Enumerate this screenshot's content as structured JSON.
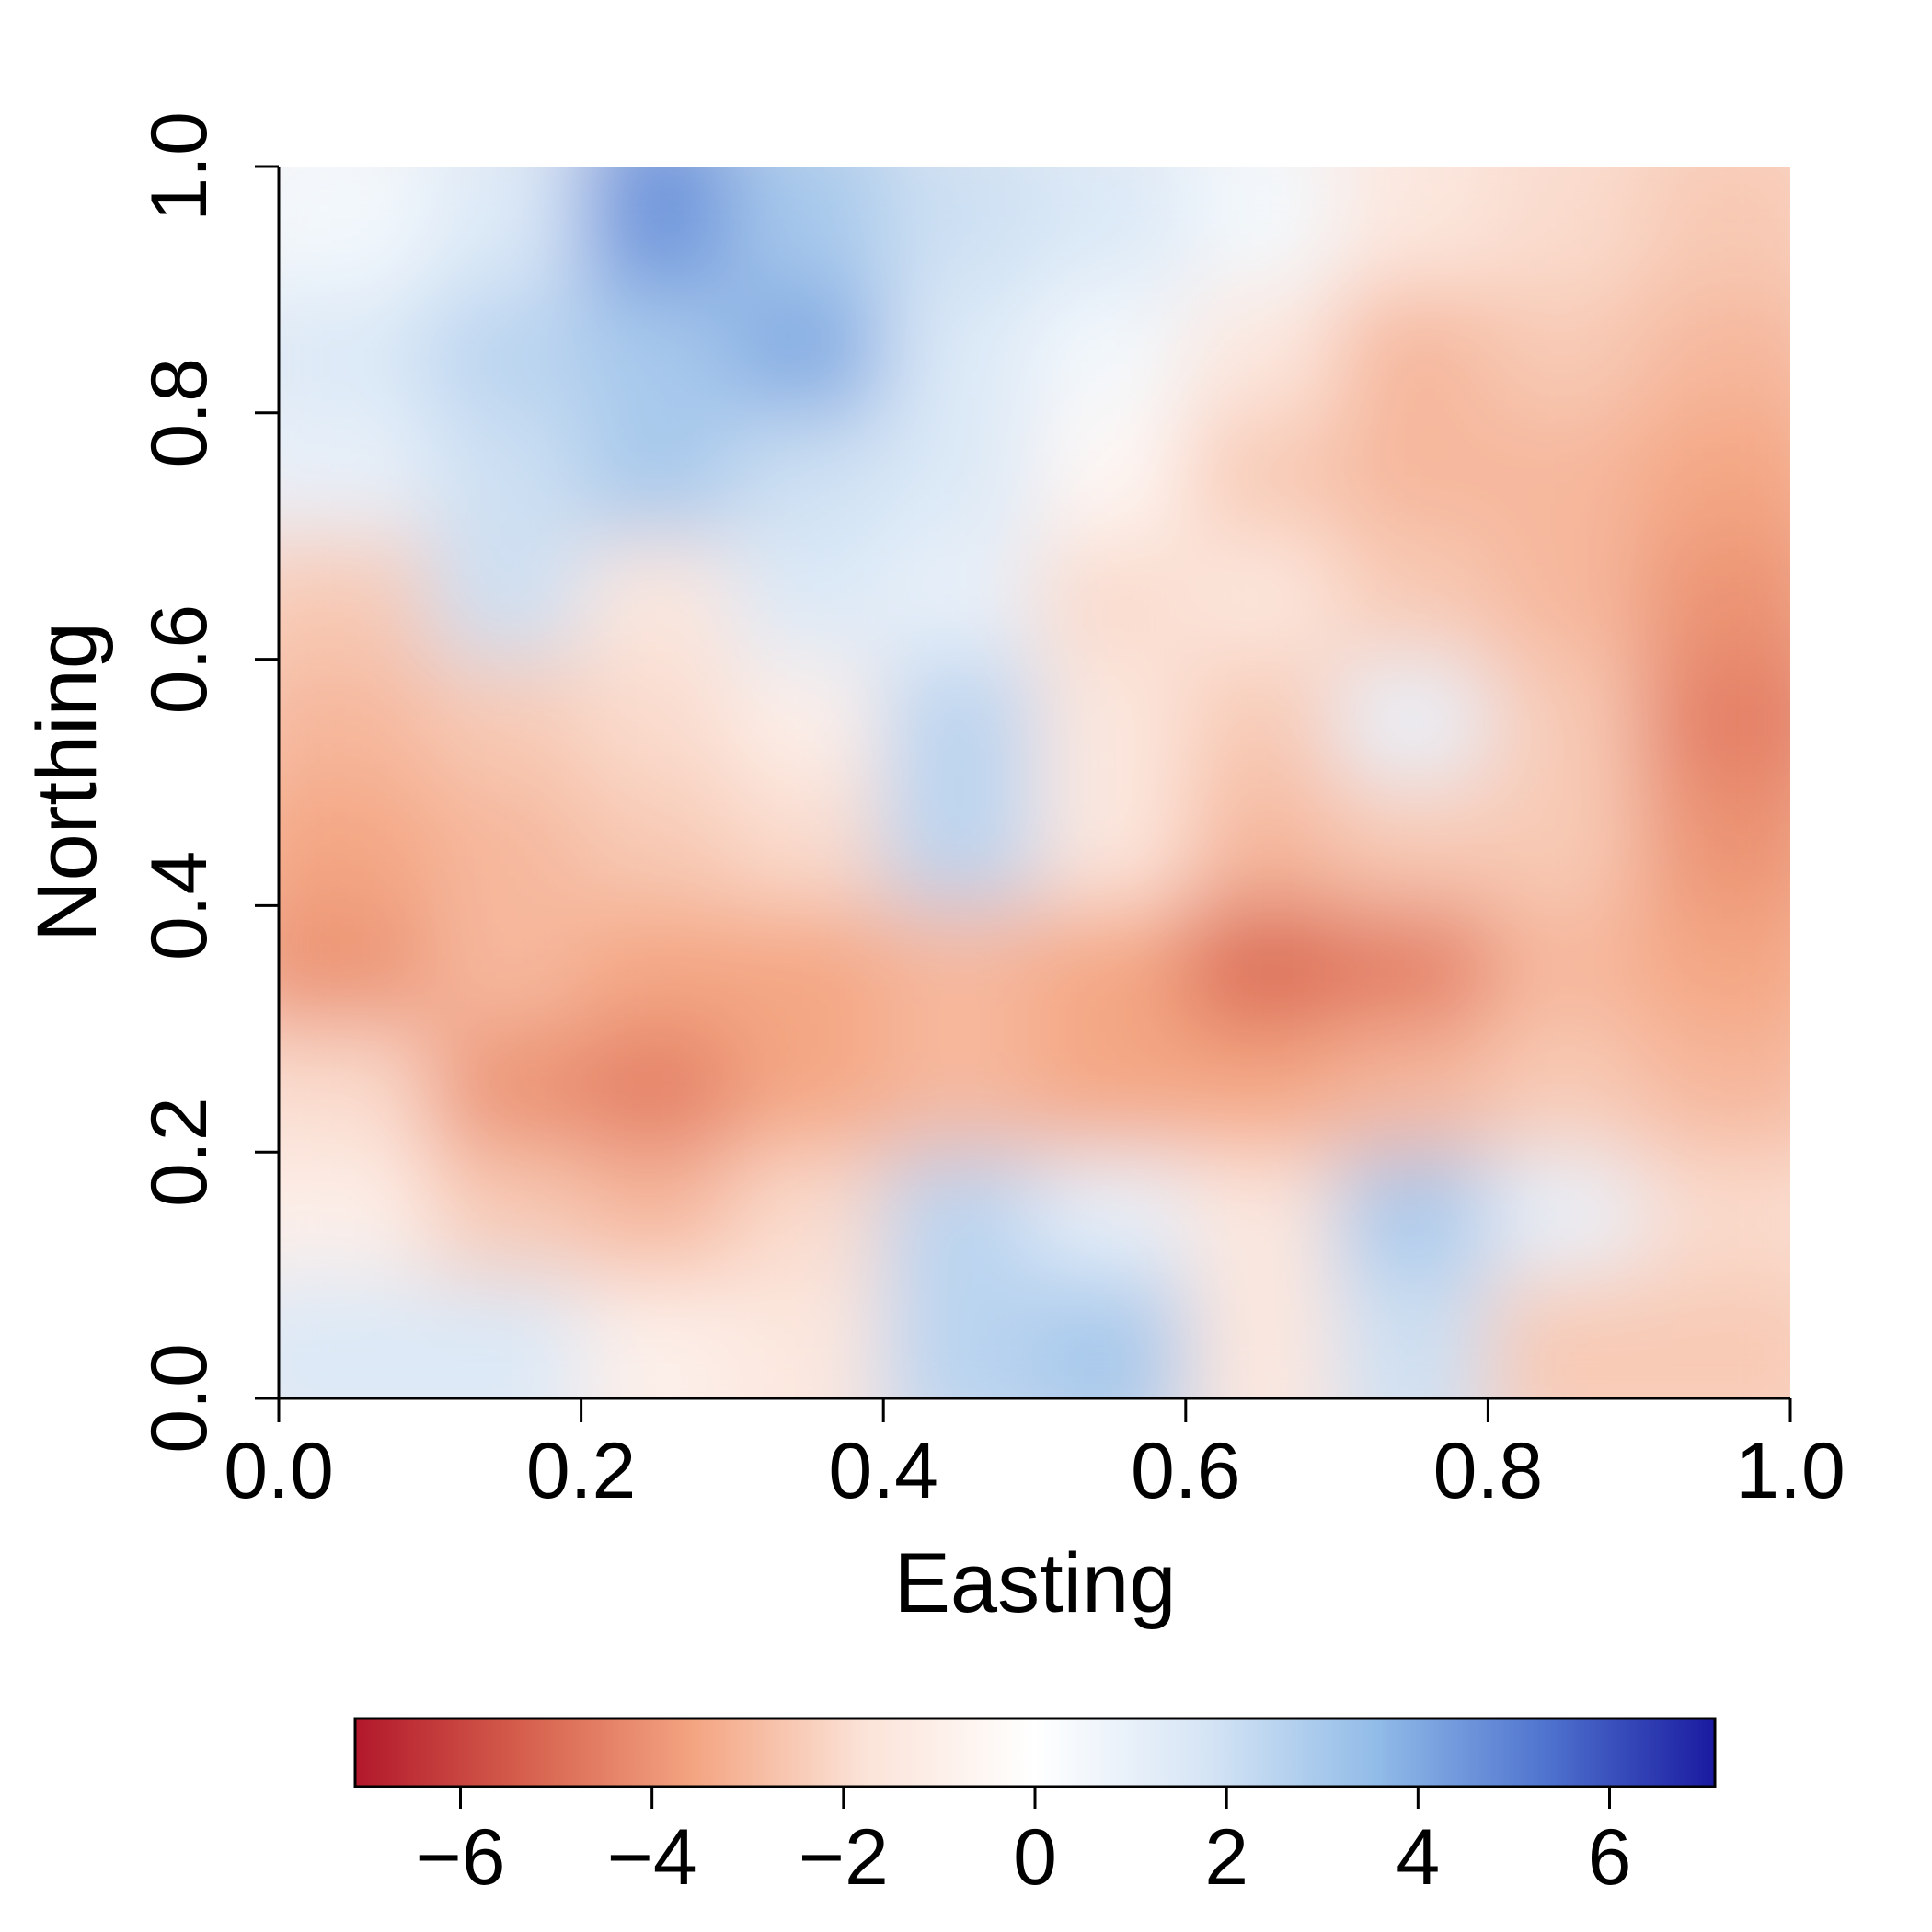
{
  "chart_data": {
    "type": "heatmap",
    "title": "",
    "xlabel": "Easting",
    "ylabel": "Northing",
    "xlim": [
      0.0,
      1.0
    ],
    "ylim": [
      0.0,
      1.0
    ],
    "x_ticks": [
      "0.0",
      "0.2",
      "0.4",
      "0.6",
      "0.8",
      "1.0"
    ],
    "x_tick_values": [
      0.0,
      0.2,
      0.4,
      0.6,
      0.8,
      1.0
    ],
    "y_ticks": [
      "0.0",
      "0.2",
      "0.4",
      "0.6",
      "0.8",
      "1.0"
    ],
    "y_tick_values": [
      0.0,
      0.2,
      0.4,
      0.6,
      0.8,
      1.0
    ],
    "colorbar": {
      "range": [
        -7.1,
        7.1
      ],
      "ticks": [
        "−6",
        "−4",
        "−2",
        "0",
        "2",
        "4",
        "6"
      ],
      "tick_values": [
        -6,
        -4,
        -2,
        0,
        2,
        4,
        6
      ],
      "colors": [
        "#b2182b",
        "#d6604d",
        "#f4a582",
        "#fbe3d8",
        "#ffffff",
        "#d6e5f5",
        "#92bce8",
        "#4f74cf",
        "#1a1aa0"
      ],
      "placement": "bottom"
    },
    "grid": false,
    "x": [
      0.05,
      0.15,
      0.25,
      0.35,
      0.45,
      0.55,
      0.65,
      0.75,
      0.85,
      0.95
    ],
    "y": [
      0.95,
      0.85,
      0.75,
      0.65,
      0.55,
      0.45,
      0.35,
      0.25,
      0.15,
      0.05
    ],
    "z": [
      [
        0.5,
        1.5,
        4.5,
        3.0,
        2.0,
        1.5,
        0.5,
        -1.5,
        -2.0,
        -2.5
      ],
      [
        1.5,
        2.5,
        3.0,
        4.0,
        1.5,
        0.5,
        -1.5,
        -3.0,
        -2.5,
        -3.0
      ],
      [
        1.0,
        2.0,
        3.0,
        2.0,
        1.5,
        -0.5,
        -2.5,
        -3.0,
        -3.0,
        -3.5
      ],
      [
        -2.5,
        2.0,
        -1.5,
        1.5,
        1.0,
        -2.0,
        -1.5,
        -2.5,
        -3.0,
        -4.0
      ],
      [
        -3.0,
        -2.5,
        -2.0,
        -1.0,
        2.5,
        -1.5,
        -2.5,
        1.0,
        -2.5,
        -4.5
      ],
      [
        -3.5,
        -3.0,
        -2.5,
        -2.0,
        2.5,
        -1.5,
        -3.0,
        -2.5,
        -2.5,
        -4.0
      ],
      [
        -4.0,
        -3.0,
        -3.5,
        -3.5,
        -3.0,
        -3.5,
        -5.0,
        -4.5,
        -3.0,
        -3.5
      ],
      [
        -2.0,
        -4.0,
        -4.5,
        -3.5,
        -3.0,
        -3.5,
        -3.5,
        -3.0,
        -2.5,
        -3.0
      ],
      [
        -1.0,
        -2.5,
        -3.0,
        -2.0,
        2.5,
        1.0,
        -1.5,
        3.0,
        1.0,
        -2.0
      ],
      [
        1.5,
        1.5,
        -1.0,
        -1.5,
        2.5,
        3.0,
        -1.5,
        2.0,
        -2.5,
        -2.5
      ]
    ]
  }
}
